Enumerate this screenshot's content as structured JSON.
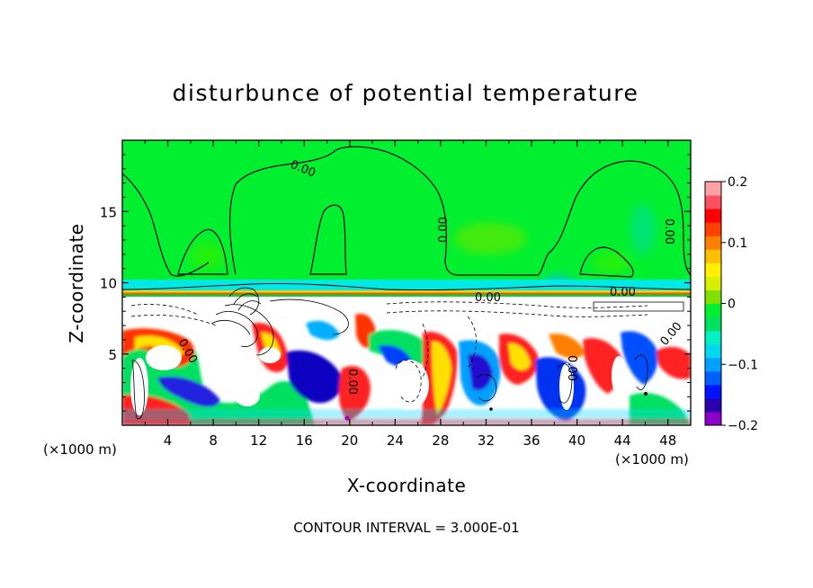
{
  "chart_data": {
    "type": "heatmap",
    "title": "disturbunce of potential temperature",
    "xlabel": "X-coordinate",
    "ylabel": "Z-coordinate",
    "x_unit": "(×1000 m)",
    "xlim": [
      0,
      50
    ],
    "ylim": [
      0,
      20
    ],
    "x_ticks": [
      4,
      8,
      12,
      16,
      20,
      24,
      28,
      32,
      36,
      40,
      44,
      48
    ],
    "y_ticks": [
      5,
      10,
      15
    ],
    "colorbar": {
      "min": -0.2,
      "max": 0.2,
      "ticks": [
        0.2,
        0.1,
        0,
        -0.1,
        -0.2
      ],
      "tick_labels": [
        "0.2",
        "0.1",
        "0",
        "−0.1",
        "−0.2"
      ],
      "colors": [
        "#8b00c8",
        "#2a00b0",
        "#0014ff",
        "#0060ff",
        "#00a0ff",
        "#00d8f0",
        "#00f0c0",
        "#00e060",
        "#00f030",
        "#80e000",
        "#d8f000",
        "#fff000",
        "#ffc000",
        "#ff8000",
        "#ff4000",
        "#ff0000",
        "#ff5060",
        "#ffa0a8"
      ]
    },
    "contour_labels": [
      "0.00",
      "0.00",
      "0.00",
      "0.00",
      "0.00",
      "0.00",
      "0.00",
      "0.00",
      "0.00"
    ],
    "background_color": "#00f030",
    "footer": "CONTOUR INTERVAL = 3.000E-01"
  }
}
